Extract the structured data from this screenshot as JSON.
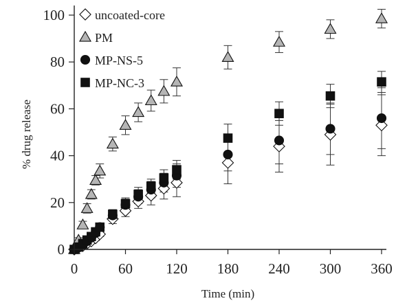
{
  "chart_data": {
    "type": "scatter",
    "xlabel": "Time (min)",
    "ylabel": "% drug release",
    "xlim": [
      0,
      360
    ],
    "ylim": [
      0,
      100
    ],
    "xticks": [
      0,
      60,
      120,
      180,
      240,
      300,
      360
    ],
    "yticks": [
      0,
      20,
      40,
      60,
      80,
      100
    ],
    "grid": false,
    "legend_position": "top-left",
    "series": [
      {
        "name": "uncoated-core",
        "marker": "diamond-open",
        "color": "#ffffff",
        "points": [
          {
            "x": 0,
            "y": 0,
            "err": 0
          },
          {
            "x": 5,
            "y": 0.8,
            "err": 0.5
          },
          {
            "x": 10,
            "y": 1.5,
            "err": 0.8
          },
          {
            "x": 15,
            "y": 2.5,
            "err": 1
          },
          {
            "x": 20,
            "y": 3.5,
            "err": 1
          },
          {
            "x": 25,
            "y": 4.8,
            "err": 1
          },
          {
            "x": 30,
            "y": 6.5,
            "err": 1
          },
          {
            "x": 45,
            "y": 13,
            "err": 2
          },
          {
            "x": 60,
            "y": 16.5,
            "err": 2.5
          },
          {
            "x": 75,
            "y": 20.5,
            "err": 3
          },
          {
            "x": 90,
            "y": 23,
            "err": 4
          },
          {
            "x": 105,
            "y": 26,
            "err": 4.5
          },
          {
            "x": 120,
            "y": 28.5,
            "err": 6
          },
          {
            "x": 180,
            "y": 37,
            "err": 9
          },
          {
            "x": 240,
            "y": 44,
            "err": 11
          },
          {
            "x": 300,
            "y": 49,
            "err": 13
          },
          {
            "x": 360,
            "y": 53,
            "err": 13
          }
        ]
      },
      {
        "name": "PM",
        "marker": "triangle",
        "color": "#b5b5b5",
        "points": [
          {
            "x": 0,
            "y": 0,
            "err": 0
          },
          {
            "x": 5,
            "y": 4,
            "err": 1
          },
          {
            "x": 10,
            "y": 10.5,
            "err": 1.5
          },
          {
            "x": 15,
            "y": 17.5,
            "err": 2
          },
          {
            "x": 20,
            "y": 23.5,
            "err": 2
          },
          {
            "x": 25,
            "y": 29.5,
            "err": 2
          },
          {
            "x": 30,
            "y": 33.5,
            "err": 3
          },
          {
            "x": 45,
            "y": 45,
            "err": 3
          },
          {
            "x": 60,
            "y": 53,
            "err": 4
          },
          {
            "x": 75,
            "y": 58.5,
            "err": 4
          },
          {
            "x": 90,
            "y": 63.5,
            "err": 4.5
          },
          {
            "x": 105,
            "y": 67.5,
            "err": 5
          },
          {
            "x": 120,
            "y": 71.5,
            "err": 6
          },
          {
            "x": 180,
            "y": 82,
            "err": 5
          },
          {
            "x": 240,
            "y": 88.5,
            "err": 4.5
          },
          {
            "x": 300,
            "y": 94,
            "err": 4
          },
          {
            "x": 360,
            "y": 98.5,
            "err": 4
          }
        ]
      },
      {
        "name": "MP-NS-5",
        "marker": "circle",
        "color": "#111111",
        "points": [
          {
            "x": 0,
            "y": 0,
            "err": 0
          },
          {
            "x": 5,
            "y": 0.8,
            "err": 0.5
          },
          {
            "x": 10,
            "y": 2,
            "err": 0.8
          },
          {
            "x": 15,
            "y": 3.5,
            "err": 1
          },
          {
            "x": 20,
            "y": 5,
            "err": 1
          },
          {
            "x": 25,
            "y": 7,
            "err": 1
          },
          {
            "x": 30,
            "y": 9.5,
            "err": 1.5
          },
          {
            "x": 45,
            "y": 14.5,
            "err": 2
          },
          {
            "x": 60,
            "y": 19,
            "err": 2.5
          },
          {
            "x": 75,
            "y": 22.5,
            "err": 3
          },
          {
            "x": 90,
            "y": 25.5,
            "err": 3.5
          },
          {
            "x": 105,
            "y": 28.5,
            "err": 4
          },
          {
            "x": 120,
            "y": 31.5,
            "err": 5
          },
          {
            "x": 180,
            "y": 40.5,
            "err": 7
          },
          {
            "x": 240,
            "y": 46.5,
            "err": 10
          },
          {
            "x": 300,
            "y": 51.5,
            "err": 11
          },
          {
            "x": 360,
            "y": 56,
            "err": 13
          }
        ]
      },
      {
        "name": "MP-NC-3",
        "marker": "square",
        "color": "#111111",
        "points": [
          {
            "x": 0,
            "y": 0,
            "err": 0
          },
          {
            "x": 5,
            "y": 1,
            "err": 0.5
          },
          {
            "x": 10,
            "y": 2.5,
            "err": 0.8
          },
          {
            "x": 15,
            "y": 4,
            "err": 1
          },
          {
            "x": 20,
            "y": 5.5,
            "err": 1
          },
          {
            "x": 25,
            "y": 7.5,
            "err": 1
          },
          {
            "x": 30,
            "y": 9.5,
            "err": 1.5
          },
          {
            "x": 45,
            "y": 15,
            "err": 2
          },
          {
            "x": 60,
            "y": 19.5,
            "err": 2.5
          },
          {
            "x": 75,
            "y": 23.5,
            "err": 3
          },
          {
            "x": 90,
            "y": 27,
            "err": 3
          },
          {
            "x": 105,
            "y": 30.5,
            "err": 3.5
          },
          {
            "x": 120,
            "y": 34,
            "err": 4
          },
          {
            "x": 180,
            "y": 47.5,
            "err": 6
          },
          {
            "x": 240,
            "y": 58,
            "err": 5
          },
          {
            "x": 300,
            "y": 65.5,
            "err": 5
          },
          {
            "x": 360,
            "y": 71.5,
            "err": 4.5
          }
        ]
      }
    ]
  }
}
